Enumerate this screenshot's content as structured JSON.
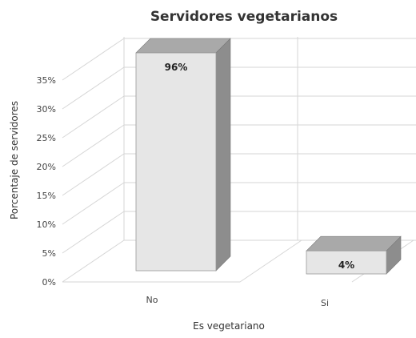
{
  "chart_data": {
    "type": "bar",
    "title": "Servidores vegetarianos",
    "xlabel": "Es vegetariano",
    "ylabel": "Porcentaje de servidores",
    "categories": [
      "No",
      "Si"
    ],
    "values": [
      96,
      4
    ],
    "data_labels": [
      "96%",
      "4%"
    ],
    "ylim": [
      0,
      35
    ],
    "yticks": [
      "0%",
      "5%",
      "10%",
      "15%",
      "20%",
      "25%",
      "30%",
      "35%"
    ],
    "grid": true,
    "three_d": true,
    "colors": {
      "bar_front": "#e6e6e6",
      "bar_top": "#a9a9a9",
      "bar_side": "#8d8d8d",
      "grid": "#d6d6d6",
      "text": "#444444",
      "title": "#333333"
    }
  }
}
